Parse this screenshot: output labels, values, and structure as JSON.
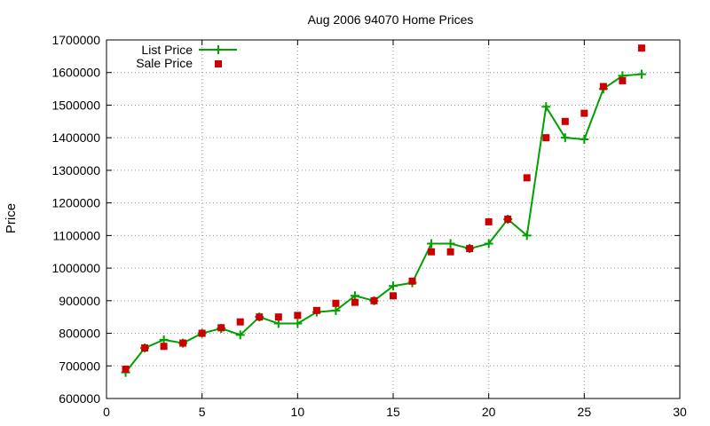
{
  "chart_data": {
    "type": "line",
    "title": "Aug 2006 94070 Home Prices",
    "xlabel": "",
    "ylabel": "Price",
    "xlim": [
      0,
      30
    ],
    "ylim": [
      600000,
      1700000
    ],
    "x_ticks": [
      0,
      5,
      10,
      15,
      20,
      25,
      30
    ],
    "y_ticks": [
      600000,
      700000,
      800000,
      900000,
      1000000,
      1100000,
      1200000,
      1300000,
      1400000,
      1500000,
      1600000,
      1700000
    ],
    "grid": true,
    "legend_position": "top-left",
    "series": [
      {
        "name": "List Price",
        "style": "line+cross",
        "color": "#00a000",
        "x": [
          1,
          2,
          3,
          4,
          5,
          6,
          7,
          8,
          9,
          10,
          11,
          12,
          13,
          14,
          15,
          16,
          17,
          18,
          19,
          20,
          21,
          22,
          23,
          24,
          25,
          26,
          27,
          28
        ],
        "y": [
          680000,
          755000,
          780000,
          770000,
          800000,
          815000,
          795000,
          850000,
          830000,
          830000,
          865000,
          870000,
          915000,
          900000,
          945000,
          955000,
          1075000,
          1075000,
          1060000,
          1075000,
          1150000,
          1100000,
          1495000,
          1400000,
          1395000,
          1550000,
          1590000,
          1595000
        ]
      },
      {
        "name": "Sale Price",
        "style": "square",
        "color": "#cc0000",
        "x": [
          1,
          2,
          3,
          4,
          5,
          6,
          7,
          8,
          9,
          10,
          11,
          12,
          13,
          14,
          15,
          16,
          17,
          18,
          19,
          20,
          21,
          22,
          23,
          24,
          25,
          26,
          27,
          28
        ],
        "y": [
          690000,
          755000,
          760000,
          770000,
          800000,
          817000,
          835000,
          850000,
          850000,
          855000,
          870000,
          892000,
          895000,
          900000,
          915000,
          960000,
          1050000,
          1050000,
          1060000,
          1142000,
          1150000,
          1277000,
          1400000,
          1450000,
          1475000,
          1557000,
          1575000,
          1675000
        ]
      }
    ]
  }
}
